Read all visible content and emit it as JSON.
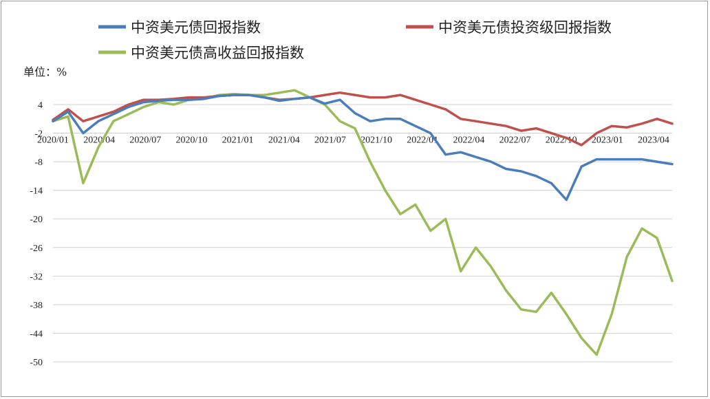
{
  "chart_data": {
    "type": "line",
    "unit_label": "单位：%",
    "legend_placement": "top",
    "grid": true,
    "ylim": [
      -50,
      7
    ],
    "y_ticks": [
      4,
      -2,
      -8,
      -14,
      -20,
      -26,
      -32,
      -38,
      -44,
      -50
    ],
    "x_tick_labels": [
      "2020/01",
      "2020/04",
      "2020/07",
      "2020/10",
      "2021/01",
      "2021/04",
      "2021/07",
      "2021/10",
      "2022/01",
      "2022/04",
      "2022/07",
      "2022/10",
      "2023/01",
      "2023/04"
    ],
    "x": [
      "2020/01",
      "2020/02",
      "2020/03",
      "2020/04",
      "2020/05",
      "2020/06",
      "2020/07",
      "2020/08",
      "2020/09",
      "2020/10",
      "2020/11",
      "2020/12",
      "2021/01",
      "2021/02",
      "2021/03",
      "2021/04",
      "2021/05",
      "2021/06",
      "2021/07",
      "2021/08",
      "2021/09",
      "2021/10",
      "2021/11",
      "2021/12",
      "2022/01",
      "2022/02",
      "2022/03",
      "2022/04",
      "2022/05",
      "2022/06",
      "2022/07",
      "2022/08",
      "2022/09",
      "2022/10",
      "2022/11",
      "2022/12",
      "2023/01",
      "2023/02",
      "2023/03",
      "2023/04",
      "2023/05",
      "2023/06"
    ],
    "series": [
      {
        "name": "中资美元债回报指数",
        "color": "#4a7ebb",
        "values": [
          0.5,
          2.5,
          -2.0,
          0.5,
          2.0,
          3.5,
          4.5,
          4.8,
          5.0,
          5.0,
          5.2,
          5.8,
          6.0,
          6.0,
          5.5,
          4.8,
          5.2,
          5.5,
          4.2,
          5.0,
          2.2,
          0.5,
          1.0,
          1.0,
          -0.5,
          -2.0,
          -6.5,
          -6.0,
          -7.0,
          -8.0,
          -9.5,
          -10.0,
          -11.0,
          -12.5,
          -16.0,
          -9.0,
          -7.5,
          -7.5,
          -7.5,
          -7.5,
          -8.0,
          -8.5
        ]
      },
      {
        "name": "中资美元债投资级回报指数",
        "color": "#c0504d",
        "values": [
          0.8,
          3.0,
          0.5,
          1.5,
          2.5,
          4.0,
          5.0,
          5.0,
          5.2,
          5.5,
          5.5,
          5.8,
          6.0,
          6.0,
          5.5,
          5.0,
          5.2,
          5.5,
          6.0,
          6.5,
          6.0,
          5.5,
          5.5,
          6.0,
          5.0,
          4.0,
          3.0,
          1.0,
          0.5,
          0.0,
          -0.5,
          -1.5,
          -1.0,
          -2.0,
          -3.0,
          -4.5,
          -2.0,
          -0.5,
          -0.8,
          0.0,
          1.0,
          0.0
        ]
      },
      {
        "name": "中资美元债高收益回报指数",
        "color": "#9bbb59",
        "values": [
          0.5,
          1.5,
          -12.5,
          -5.0,
          0.5,
          2.0,
          3.5,
          4.5,
          4.0,
          5.0,
          5.2,
          6.0,
          6.2,
          6.0,
          6.0,
          6.5,
          7.0,
          5.5,
          4.0,
          0.5,
          -1.0,
          -8.0,
          -14.0,
          -19.0,
          -17.0,
          -22.5,
          -20.0,
          -31.0,
          -26.0,
          -30.0,
          -35.0,
          -39.0,
          -39.5,
          -35.5,
          -40.0,
          -45.0,
          -48.5,
          -40.0,
          -28.0,
          -22.0,
          -24.0,
          -33.0
        ]
      }
    ]
  }
}
